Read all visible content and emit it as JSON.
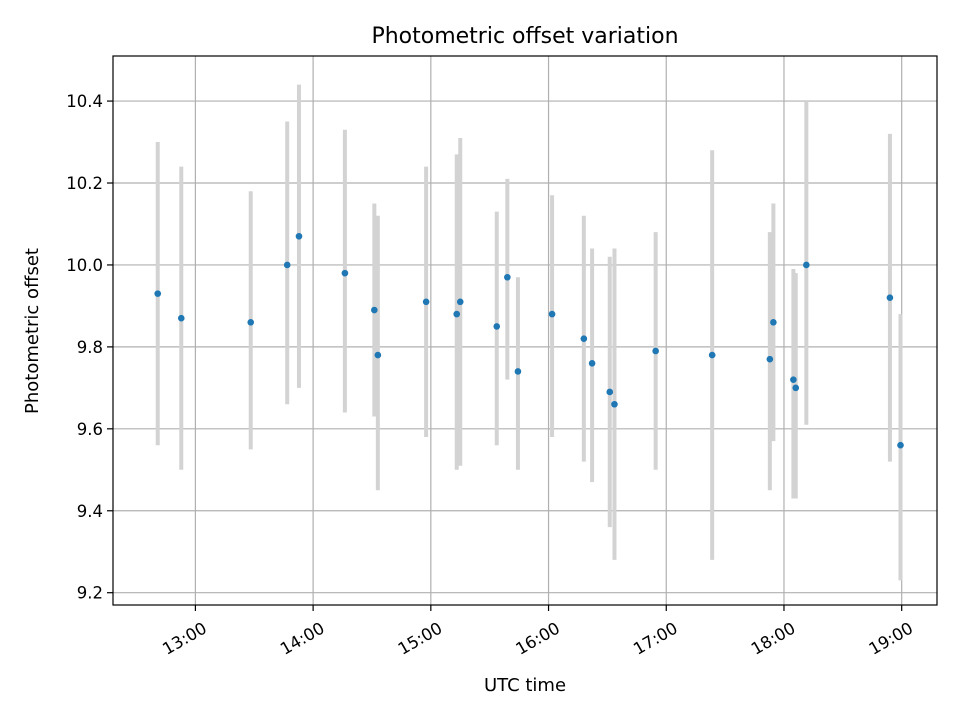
{
  "chart_data": {
    "type": "scatter",
    "title": "Photometric offset variation",
    "xlabel": "UTC time",
    "ylabel": "Photometric offset",
    "x_unit": "hour of day (UTC)",
    "xlim": [
      12.3,
      19.3
    ],
    "ylim": [
      9.17,
      10.51
    ],
    "x_ticks": [
      13,
      14,
      15,
      16,
      17,
      18,
      19
    ],
    "x_tick_labels": [
      "13:00",
      "14:00",
      "15:00",
      "16:00",
      "17:00",
      "18:00",
      "19:00"
    ],
    "y_ticks": [
      9.2,
      9.4,
      9.6,
      9.8,
      10.0,
      10.2,
      10.4
    ],
    "y_tick_labels": [
      "9.2",
      "9.4",
      "9.6",
      "9.8",
      "10.0",
      "10.2",
      "10.4"
    ],
    "grid": true,
    "marker_color": "#1f77b4",
    "errorbar_color": "#d3d3d3",
    "points": [
      {
        "x": 12.68,
        "y": 9.93,
        "ylow": 9.56,
        "yhigh": 10.3
      },
      {
        "x": 12.88,
        "y": 9.87,
        "ylow": 9.5,
        "yhigh": 10.24
      },
      {
        "x": 13.47,
        "y": 9.86,
        "ylow": 9.55,
        "yhigh": 10.18
      },
      {
        "x": 13.78,
        "y": 10.0,
        "ylow": 9.66,
        "yhigh": 10.35
      },
      {
        "x": 13.88,
        "y": 10.07,
        "ylow": 9.7,
        "yhigh": 10.44
      },
      {
        "x": 14.27,
        "y": 9.98,
        "ylow": 9.64,
        "yhigh": 10.33
      },
      {
        "x": 14.52,
        "y": 9.89,
        "ylow": 9.63,
        "yhigh": 10.15
      },
      {
        "x": 14.55,
        "y": 9.78,
        "ylow": 9.45,
        "yhigh": 10.12
      },
      {
        "x": 14.96,
        "y": 9.91,
        "ylow": 9.58,
        "yhigh": 10.24
      },
      {
        "x": 15.22,
        "y": 9.88,
        "ylow": 9.5,
        "yhigh": 10.27
      },
      {
        "x": 15.25,
        "y": 9.91,
        "ylow": 9.51,
        "yhigh": 10.31
      },
      {
        "x": 15.56,
        "y": 9.85,
        "ylow": 9.56,
        "yhigh": 10.13
      },
      {
        "x": 15.65,
        "y": 9.97,
        "ylow": 9.72,
        "yhigh": 10.21
      },
      {
        "x": 15.74,
        "y": 9.74,
        "ylow": 9.5,
        "yhigh": 9.97
      },
      {
        "x": 16.03,
        "y": 9.88,
        "ylow": 9.58,
        "yhigh": 10.17
      },
      {
        "x": 16.3,
        "y": 9.82,
        "ylow": 9.52,
        "yhigh": 10.12
      },
      {
        "x": 16.37,
        "y": 9.76,
        "ylow": 9.47,
        "yhigh": 10.04
      },
      {
        "x": 16.52,
        "y": 9.69,
        "ylow": 9.36,
        "yhigh": 10.02
      },
      {
        "x": 16.56,
        "y": 9.66,
        "ylow": 9.28,
        "yhigh": 10.04
      },
      {
        "x": 16.91,
        "y": 9.79,
        "ylow": 9.5,
        "yhigh": 10.08
      },
      {
        "x": 17.39,
        "y": 9.78,
        "ylow": 9.28,
        "yhigh": 10.28
      },
      {
        "x": 17.88,
        "y": 9.77,
        "ylow": 9.45,
        "yhigh": 10.08
      },
      {
        "x": 17.91,
        "y": 9.86,
        "ylow": 9.57,
        "yhigh": 10.15
      },
      {
        "x": 18.08,
        "y": 9.72,
        "ylow": 9.43,
        "yhigh": 9.99
      },
      {
        "x": 18.1,
        "y": 9.7,
        "ylow": 9.43,
        "yhigh": 9.98
      },
      {
        "x": 18.19,
        "y": 10.0,
        "ylow": 9.61,
        "yhigh": 10.4
      },
      {
        "x": 18.9,
        "y": 9.92,
        "ylow": 9.52,
        "yhigh": 10.32
      },
      {
        "x": 18.99,
        "y": 9.56,
        "ylow": 9.23,
        "yhigh": 9.88
      }
    ]
  }
}
